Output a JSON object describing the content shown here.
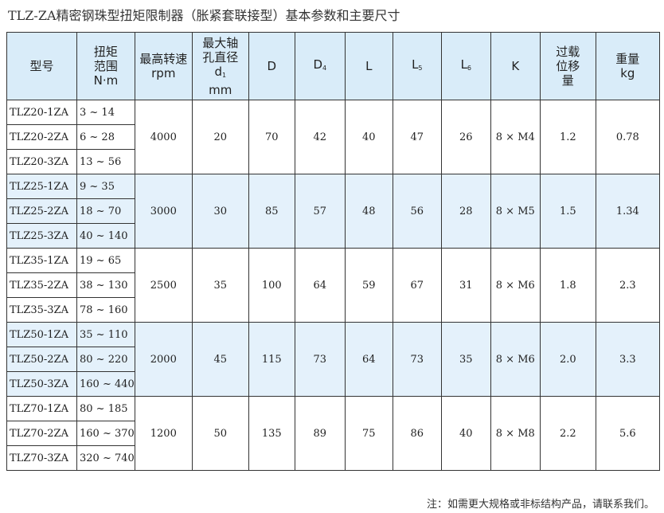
{
  "title": "TLZ-ZA精密钢珠型扭矩限制器（胀紧套联接型）基本参数和主要尺寸",
  "headers": {
    "model": "型号",
    "torque": [
      "扭矩",
      "范围",
      "N·m"
    ],
    "speed": [
      "最高转速",
      "rpm"
    ],
    "bore": [
      "最大轴",
      "孔直径",
      "d",
      "1",
      "mm"
    ],
    "D": "D",
    "D4": [
      "D",
      "4"
    ],
    "L": "L",
    "L5": [
      "L",
      "5"
    ],
    "L6": [
      "L",
      "6"
    ],
    "K": "K",
    "overload": [
      "过载",
      "位移",
      "量"
    ],
    "weight": [
      "重量",
      "kg"
    ]
  },
  "groups": [
    {
      "models": [
        [
          "TLZ20-1ZA",
          "3 ~ 14"
        ],
        [
          "TLZ20-2ZA",
          "6 ~ 28"
        ],
        [
          "TLZ20-3ZA",
          "13 ~ 56"
        ]
      ],
      "speed": "4000",
      "bore": "20",
      "D": "70",
      "D4": "42",
      "L": "40",
      "L5": "47",
      "L6": "26",
      "K": "8 × M4",
      "overload": "1.2",
      "weight": "0.78"
    },
    {
      "models": [
        [
          "TLZ25-1ZA",
          "9 ~ 35"
        ],
        [
          "TLZ25-2ZA",
          "18 ~ 70"
        ],
        [
          "TLZ25-3ZA",
          "40 ~ 140"
        ]
      ],
      "speed": "3000",
      "bore": "30",
      "D": "85",
      "D4": "57",
      "L": "48",
      "L5": "56",
      "L6": "28",
      "K": "8 × M5",
      "overload": "1.5",
      "weight": "1.34"
    },
    {
      "models": [
        [
          "TLZ35-1ZA",
          "19 ~ 65"
        ],
        [
          "TLZ35-2ZA",
          "38 ~ 130"
        ],
        [
          "TLZ35-3ZA",
          "78 ~ 160"
        ]
      ],
      "speed": "2500",
      "bore": "35",
      "D": "100",
      "D4": "64",
      "L": "59",
      "L5": "67",
      "L6": "31",
      "K": "8 × M6",
      "overload": "1.8",
      "weight": "2.3"
    },
    {
      "models": [
        [
          "TLZ50-1ZA",
          "35 ~ 110"
        ],
        [
          "TLZ50-2ZA",
          "80 ~ 220"
        ],
        [
          "TLZ50-3ZA",
          "160 ~ 440"
        ]
      ],
      "speed": "2000",
      "bore": "45",
      "D": "115",
      "D4": "73",
      "L": "64",
      "L5": "73",
      "L6": "35",
      "K": "8 × M6",
      "overload": "2.0",
      "weight": "3.3"
    },
    {
      "models": [
        [
          "TLZ70-1ZA",
          "80 ~ 185"
        ],
        [
          "TLZ70-2ZA",
          "160 ~ 370"
        ],
        [
          "TLZ70-3ZA",
          "320 ~ 740"
        ]
      ],
      "speed": "1200",
      "bore": "50",
      "D": "135",
      "D4": "89",
      "L": "75",
      "L5": "86",
      "L6": "40",
      "K": "8 × M8",
      "overload": "2.2",
      "weight": "5.6"
    }
  ],
  "note": "注：如需更大规格或非标结构产品，请联系我们。",
  "colors": {
    "header_bg": "#d9ecf9",
    "alt_row_bg": "#e4f1fb",
    "border": "#333333"
  }
}
